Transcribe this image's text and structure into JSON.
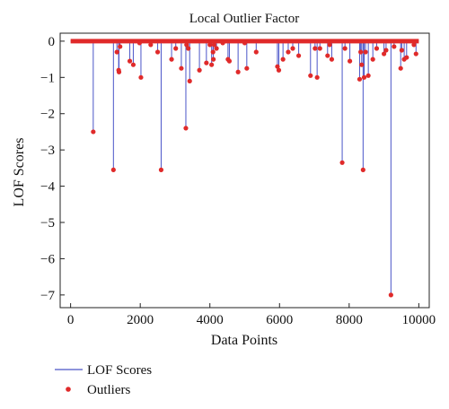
{
  "chart_data": {
    "type": "stem",
    "title": "Local Outlier Factor",
    "xlabel": "Data Points",
    "ylabel": "LOF Scores",
    "xlim": [
      -300,
      10300
    ],
    "ylim": [
      -7.35,
      0.22
    ],
    "x_ticks": [
      0,
      2000,
      4000,
      6000,
      8000,
      10000
    ],
    "x_tick_labels": [
      "0",
      "2000",
      "4000",
      "6000",
      "8000",
      "10000"
    ],
    "y_ticks": [
      0,
      -1,
      -2,
      -3,
      -4,
      -5,
      -6,
      -7
    ],
    "y_tick_labels": [
      "0",
      "−1",
      "−2",
      "−3",
      "−4",
      "−5",
      "−6",
      "−7"
    ],
    "baseline": {
      "x_start": 0,
      "x_end": 10000,
      "y": 0
    },
    "grid": false,
    "legend": {
      "position": "bottom-left",
      "entries": [
        {
          "label": "LOF Scores",
          "marker": "line",
          "color": "#4a55c8"
        },
        {
          "label": "Outliers",
          "marker": "dot",
          "color": "#e02a2a"
        }
      ]
    },
    "series": [
      {
        "name": "LOF Scores",
        "style": "stem",
        "color": "#4a55c8",
        "x": [
          650,
          1230,
          1330,
          1380,
          1390,
          1420,
          1700,
          1800,
          1980,
          2020,
          2300,
          2500,
          2600,
          2900,
          3020,
          3180,
          3310,
          3330,
          3380,
          3420,
          3700,
          3900,
          4000,
          4050,
          4090,
          4100,
          4120,
          4190,
          4370,
          4520,
          4560,
          4810,
          5000,
          5060,
          5330,
          5940,
          5980,
          6100,
          6250,
          6380,
          6550,
          6890,
          7020,
          7080,
          7160,
          7380,
          7440,
          7500,
          7800,
          7880,
          8020,
          8300,
          8330,
          8360,
          8400,
          8430,
          8470,
          8550,
          8680,
          8790,
          9000,
          9060,
          9200,
          9290,
          9480,
          9510,
          9580,
          9650,
          9860,
          9920
        ],
        "y": [
          -2.5,
          -3.55,
          -0.3,
          -0.8,
          -0.85,
          -0.15,
          -0.55,
          -0.65,
          -0.05,
          -1.0,
          -0.1,
          -0.3,
          -3.55,
          -0.5,
          -0.2,
          -0.75,
          -2.4,
          -0.1,
          -0.2,
          -1.1,
          -0.8,
          -0.6,
          -0.1,
          -0.65,
          -0.3,
          -0.5,
          -0.1,
          -0.2,
          -0.05,
          -0.5,
          -0.55,
          -0.85,
          -0.05,
          -0.75,
          -0.3,
          -0.7,
          -0.8,
          -0.5,
          -0.3,
          -0.2,
          -0.4,
          -0.95,
          -0.2,
          -1.0,
          -0.2,
          -0.4,
          -0.1,
          -0.5,
          -3.35,
          -0.2,
          -0.55,
          -1.05,
          -0.3,
          -0.65,
          -3.55,
          -1.0,
          -0.3,
          -0.95,
          -0.5,
          -0.2,
          -0.35,
          -0.25,
          -7.0,
          -0.15,
          -0.75,
          -0.25,
          -0.5,
          -0.45,
          -0.1,
          -0.35
        ]
      },
      {
        "name": "Outliers",
        "style": "scatter",
        "color": "#e02a2a",
        "x": [
          650,
          1230,
          1330,
          1380,
          1390,
          1420,
          1700,
          1800,
          1980,
          2020,
          2300,
          2500,
          2600,
          2900,
          3020,
          3180,
          3310,
          3330,
          3380,
          3420,
          3700,
          3900,
          4000,
          4050,
          4090,
          4100,
          4120,
          4190,
          4370,
          4520,
          4560,
          4810,
          5000,
          5060,
          5330,
          5940,
          5980,
          6100,
          6250,
          6380,
          6550,
          6890,
          7020,
          7080,
          7160,
          7380,
          7440,
          7500,
          7800,
          7880,
          8020,
          8300,
          8330,
          8360,
          8400,
          8430,
          8470,
          8550,
          8680,
          8790,
          9000,
          9060,
          9200,
          9290,
          9480,
          9510,
          9580,
          9650,
          9860,
          9920
        ],
        "y": [
          -2.5,
          -3.55,
          -0.3,
          -0.8,
          -0.85,
          -0.15,
          -0.55,
          -0.65,
          -0.05,
          -1.0,
          -0.1,
          -0.3,
          -3.55,
          -0.5,
          -0.2,
          -0.75,
          -2.4,
          -0.1,
          -0.2,
          -1.1,
          -0.8,
          -0.6,
          -0.1,
          -0.65,
          -0.3,
          -0.5,
          -0.1,
          -0.2,
          -0.05,
          -0.5,
          -0.55,
          -0.85,
          -0.05,
          -0.75,
          -0.3,
          -0.7,
          -0.8,
          -0.5,
          -0.3,
          -0.2,
          -0.4,
          -0.95,
          -0.2,
          -1.0,
          -0.2,
          -0.4,
          -0.1,
          -0.5,
          -3.35,
          -0.2,
          -0.55,
          -1.05,
          -0.3,
          -0.65,
          -3.55,
          -1.0,
          -0.3,
          -0.95,
          -0.5,
          -0.2,
          -0.35,
          -0.25,
          -7.0,
          -0.15,
          -0.75,
          -0.25,
          -0.5,
          -0.45,
          -0.1,
          -0.35
        ]
      }
    ]
  }
}
